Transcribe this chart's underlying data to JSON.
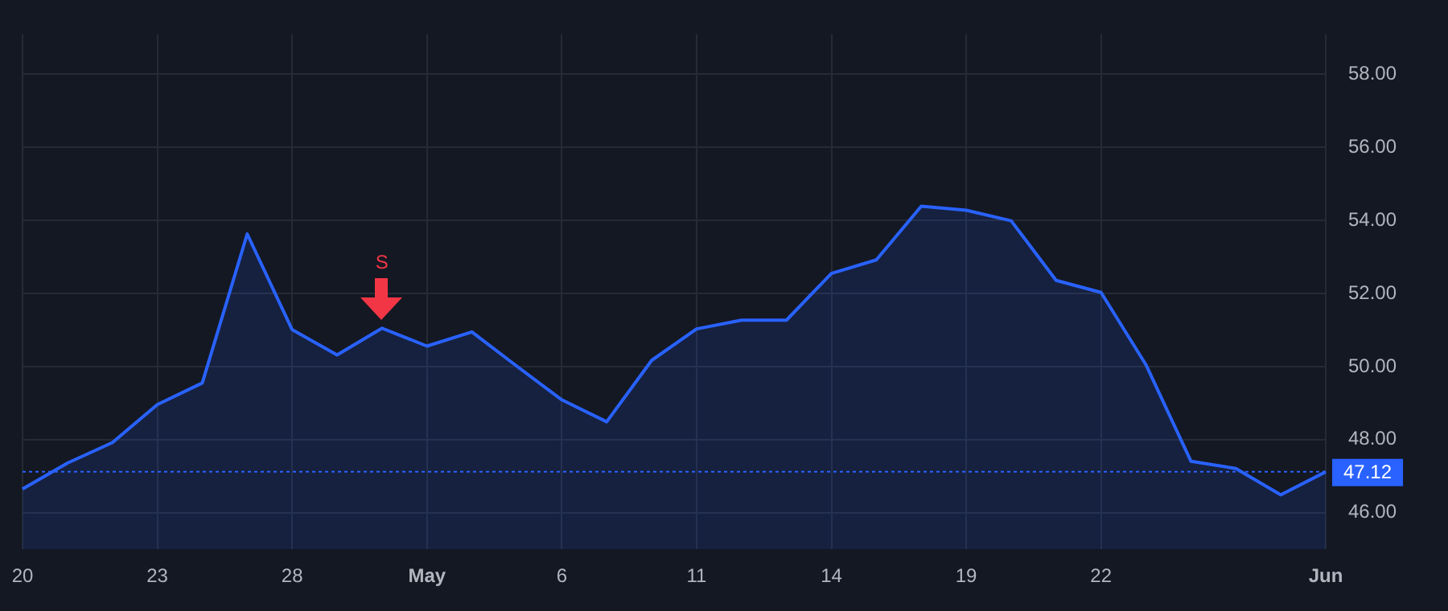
{
  "chart_data": {
    "type": "area",
    "categories": [
      "20",
      null,
      null,
      "23",
      null,
      null,
      "28",
      null,
      null,
      "May",
      null,
      null,
      "6",
      null,
      null,
      "11",
      null,
      null,
      "14",
      null,
      null,
      "19",
      null,
      null,
      "22",
      null,
      null,
      null,
      null,
      "Jun"
    ],
    "series": [
      {
        "color": "#2962ff",
        "values": [
          46.65,
          47.36,
          47.92,
          48.96,
          49.55,
          53.63,
          51.01,
          50.32,
          51.05,
          50.56,
          50.95,
          50.01,
          49.09,
          48.49,
          50.17,
          51.03,
          51.27,
          51.27,
          52.55,
          52.92,
          54.39,
          54.28,
          53.99,
          52.36,
          52.03,
          50.05,
          47.41,
          47.21,
          46.49,
          47.12
        ]
      }
    ],
    "ylim": [
      45,
      59.1
    ],
    "yticks": [
      {
        "value": 46,
        "label": "46.00"
      },
      {
        "value": 48,
        "label": "48.00"
      },
      {
        "value": 50,
        "label": "50.00"
      },
      {
        "value": 52,
        "label": "52.00"
      },
      {
        "value": 54,
        "label": "54.00"
      },
      {
        "value": 56,
        "label": "56.00"
      },
      {
        "value": 58,
        "label": "58.00"
      }
    ],
    "grid": true,
    "ref_lines": [
      {
        "axis": "y",
        "value": 47.12,
        "label": "47.12",
        "color": "#2962ff",
        "line_style": "dotted"
      }
    ],
    "annotations": [
      {
        "text": "S",
        "y": 51.05
      }
    ]
  }
}
